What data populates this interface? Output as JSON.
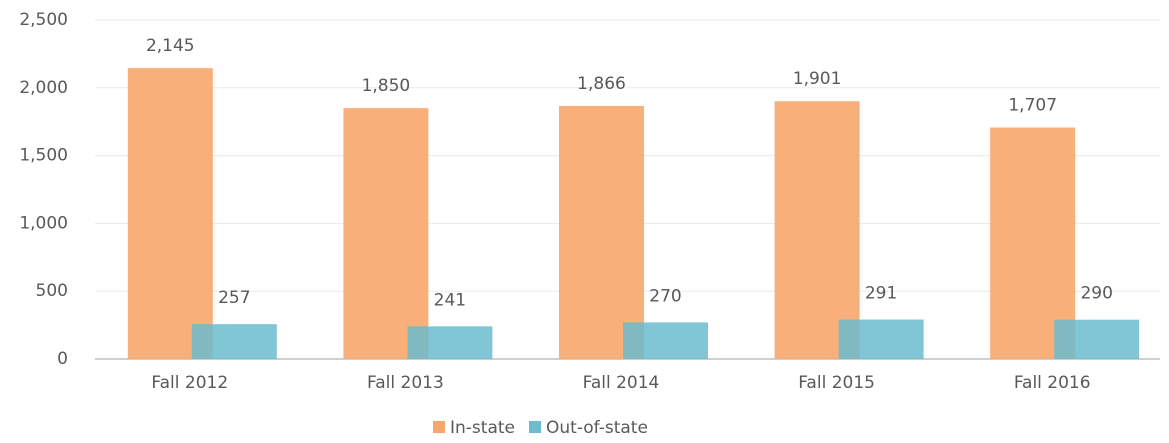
{
  "chart_data": {
    "type": "bar",
    "categories": [
      "Fall 2012",
      "Fall 2013",
      "Fall 2014",
      "Fall 2015",
      "Fall 2016"
    ],
    "series": [
      {
        "name": "In-state",
        "color": "#f7a66c",
        "values": [
          2145,
          1850,
          1866,
          1901,
          1707
        ],
        "value_labels": [
          "2,145",
          "1,850",
          "1,866",
          "1,901",
          "1,707"
        ]
      },
      {
        "name": "Out-of-state",
        "color": "#6bbccd",
        "values": [
          257,
          241,
          270,
          291,
          290
        ],
        "value_labels": [
          "257",
          "241",
          "270",
          "291",
          "290"
        ]
      }
    ],
    "ylim": [
      0,
      2500
    ],
    "yticks": [
      0,
      500,
      {
        "value": 1000,
        "label": "1,000"
      },
      {
        "value": 1500,
        "label": "1,500"
      },
      {
        "value": 2000,
        "label": "2,000"
      },
      {
        "value": 2500,
        "label": "2,500"
      }
    ],
    "grid": true,
    "legend": "bottom"
  }
}
